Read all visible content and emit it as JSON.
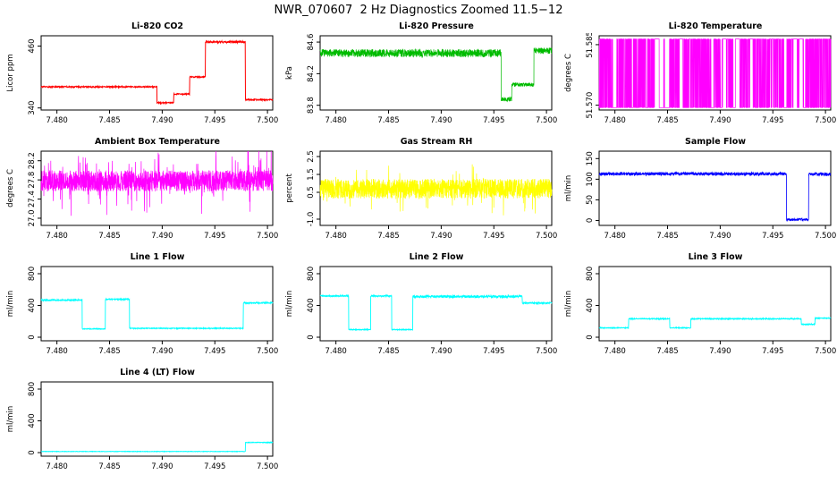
{
  "title": "NWR_070607  2 Hz Diagnostics Zoomed 11.5−12",
  "chart_data": [
    {
      "id": "li820-co2",
      "type": "line",
      "title": "Li-820 CO2",
      "ylabel": "Licor ppm",
      "color": "#FF0000",
      "lw": 1.0,
      "samples": 900,
      "xlim": [
        7.4785,
        7.5005
      ],
      "xticks": [
        7.48,
        7.485,
        7.49,
        7.495,
        7.5
      ],
      "xtick_labels": [
        "7.480",
        "7.485",
        "7.490",
        "7.495",
        "7.500"
      ],
      "ylim": [
        336,
        480
      ],
      "ytick_values": [
        340,
        460
      ],
      "ytick_labels": [
        "340",
        "460"
      ],
      "segments": [
        {
          "x0": 7.4785,
          "x1": 7.4895,
          "y": 381,
          "noise": 1.2
        },
        {
          "x0": 7.4895,
          "x1": 7.4911,
          "y": 350,
          "noise": 1.2
        },
        {
          "x0": 7.4911,
          "x1": 7.4926,
          "y": 367,
          "noise": 1.2
        },
        {
          "x0": 7.4926,
          "x1": 7.4941,
          "y": 400,
          "noise": 1.2
        },
        {
          "x0": 7.4941,
          "x1": 7.4979,
          "y": 468,
          "noise": 1.8
        },
        {
          "x0": 7.4979,
          "x1": 7.5005,
          "y": 356,
          "noise": 1.2
        }
      ]
    },
    {
      "id": "li820-pressure",
      "type": "line",
      "title": "Li-820 Pressure",
      "ylabel": "kPa",
      "color": "#00BB00",
      "lw": 0.7,
      "samples": 1500,
      "xlim": [
        7.4785,
        7.5005
      ],
      "xticks": [
        7.48,
        7.485,
        7.49,
        7.495,
        7.5
      ],
      "xtick_labels": [
        "7.480",
        "7.485",
        "7.490",
        "7.495",
        "7.500"
      ],
      "ylim": [
        83.74,
        84.68
      ],
      "ytick_values": [
        83.8,
        84.2,
        84.6
      ],
      "ytick_labels": [
        "83.8",
        "84.2",
        "84.6"
      ],
      "segments": [
        {
          "x0": 7.4785,
          "x1": 7.4957,
          "y": 84.46,
          "noise": 0.05
        },
        {
          "x0": 7.4957,
          "x1": 7.4967,
          "y": 83.88,
          "noise": 0.03
        },
        {
          "x0": 7.4967,
          "x1": 7.4988,
          "y": 84.06,
          "noise": 0.025
        },
        {
          "x0": 7.4988,
          "x1": 7.5005,
          "y": 84.49,
          "noise": 0.04
        }
      ]
    },
    {
      "id": "li820-temperature",
      "type": "line",
      "title": "Li-820 Temperature",
      "ylabel": "degrees C",
      "color": "#FF00FF",
      "lw": 0.7,
      "samples": 1600,
      "noise_type": "binary",
      "xlim": [
        7.4785,
        7.5005
      ],
      "xticks": [
        7.48,
        7.485,
        7.49,
        7.495,
        7.5
      ],
      "xtick_labels": [
        "7.480",
        "7.485",
        "7.490",
        "7.495",
        "7.500"
      ],
      "ylim": [
        51.5688,
        51.5872
      ],
      "ytick_values": [
        51.57,
        51.585
      ],
      "ytick_labels": [
        "51.570",
        "51.585"
      ],
      "segments": [
        {
          "x0": 7.4785,
          "x1": 7.5005,
          "lo": 51.5694,
          "hi": 51.5864
        }
      ]
    },
    {
      "id": "ambient-box-temperature",
      "type": "line",
      "title": "Ambient Box Temperature",
      "ylabel": "degrees C",
      "color": "#FF00FF",
      "lw": 0.7,
      "samples": 1700,
      "xlim": [
        7.4785,
        7.5005
      ],
      "xticks": [
        7.48,
        7.485,
        7.49,
        7.495,
        7.5
      ],
      "xtick_labels": [
        "7.480",
        "7.485",
        "7.490",
        "7.495",
        "7.500"
      ],
      "ylim": [
        26.85,
        28.4
      ],
      "ytick_values": [
        27.0,
        27.4,
        27.8,
        28.2
      ],
      "ytick_labels": [
        "27.0",
        "27.4",
        "27.8",
        "28.2"
      ],
      "segments": [
        {
          "x0": 7.4785,
          "x1": 7.5005,
          "y": 27.78,
          "noise": 0.22,
          "spike": {
            "amp": 0.5,
            "prob": 0.05
          }
        }
      ]
    },
    {
      "id": "gas-stream-rh",
      "type": "line",
      "title": "Gas Stream RH",
      "ylabel": "percent",
      "color": "#FFFF00",
      "lw": 0.7,
      "samples": 1700,
      "xlim": [
        7.4785,
        7.5005
      ],
      "xticks": [
        7.48,
        7.485,
        7.49,
        7.495,
        7.5
      ],
      "xtick_labels": [
        "7.480",
        "7.485",
        "7.490",
        "7.495",
        "7.500"
      ],
      "ylim": [
        -1.35,
        2.8
      ],
      "ytick_values": [
        -1.0,
        0.5,
        1.5,
        2.5
      ],
      "ytick_labels": [
        "-1.0",
        "0.5",
        "1.5",
        "2.5"
      ],
      "segments": [
        {
          "x0": 7.4785,
          "x1": 7.5005,
          "y": 0.7,
          "noise": 0.55,
          "spike": {
            "amp": 1.0,
            "prob": 0.04
          }
        }
      ]
    },
    {
      "id": "sample-flow",
      "type": "line",
      "title": "Sample Flow",
      "ylabel": "ml/min",
      "color": "#0000FF",
      "lw": 0.8,
      "samples": 1400,
      "xlim": [
        7.4785,
        7.5005
      ],
      "xticks": [
        7.48,
        7.485,
        7.49,
        7.495,
        7.5
      ],
      "xtick_labels": [
        "7.480",
        "7.485",
        "7.490",
        "7.495",
        "7.500"
      ],
      "ylim": [
        -12,
        168
      ],
      "ytick_values": [
        0,
        50,
        100,
        150
      ],
      "ytick_labels": [
        "0",
        "50",
        "100",
        "150"
      ],
      "segments": [
        {
          "x0": 7.4785,
          "x1": 7.4963,
          "y": 113,
          "noise": 4
        },
        {
          "x0": 7.4963,
          "x1": 7.4984,
          "y": 2,
          "noise": 3
        },
        {
          "x0": 7.4984,
          "x1": 7.5005,
          "y": 112,
          "noise": 4
        }
      ]
    },
    {
      "id": "line1-flow",
      "type": "line",
      "title": "Line 1 Flow",
      "ylabel": "ml/min",
      "color": "#00FFFF",
      "lw": 0.9,
      "samples": 1200,
      "xlim": [
        7.4785,
        7.5005
      ],
      "xticks": [
        7.48,
        7.485,
        7.49,
        7.495,
        7.5
      ],
      "xtick_labels": [
        "7.480",
        "7.485",
        "7.490",
        "7.495",
        "7.500"
      ],
      "ylim": [
        -45,
        890
      ],
      "ytick_values": [
        0,
        400,
        800
      ],
      "ytick_labels": [
        "0",
        "400",
        "800"
      ],
      "segments": [
        {
          "x0": 7.4785,
          "x1": 7.4824,
          "y": 468,
          "noise": 8
        },
        {
          "x0": 7.4824,
          "x1": 7.4846,
          "y": 105,
          "noise": 5
        },
        {
          "x0": 7.4846,
          "x1": 7.4869,
          "y": 478,
          "noise": 8
        },
        {
          "x0": 7.4869,
          "x1": 7.4977,
          "y": 112,
          "noise": 5
        },
        {
          "x0": 7.4977,
          "x1": 7.5005,
          "y": 432,
          "noise": 9
        }
      ]
    },
    {
      "id": "line2-flow",
      "type": "line",
      "title": "Line 2 Flow",
      "ylabel": "ml/min",
      "color": "#00FFFF",
      "lw": 0.9,
      "samples": 1200,
      "xlim": [
        7.4785,
        7.5005
      ],
      "xticks": [
        7.48,
        7.485,
        7.49,
        7.495,
        7.5
      ],
      "xtick_labels": [
        "7.480",
        "7.485",
        "7.490",
        "7.495",
        "7.500"
      ],
      "ylim": [
        -45,
        890
      ],
      "ytick_values": [
        0,
        400,
        800
      ],
      "ytick_labels": [
        "0",
        "400",
        "800"
      ],
      "segments": [
        {
          "x0": 7.4785,
          "x1": 7.4812,
          "y": 520,
          "noise": 9
        },
        {
          "x0": 7.4812,
          "x1": 7.4833,
          "y": 96,
          "noise": 5
        },
        {
          "x0": 7.4833,
          "x1": 7.4853,
          "y": 520,
          "noise": 9
        },
        {
          "x0": 7.4853,
          "x1": 7.4873,
          "y": 96,
          "noise": 5
        },
        {
          "x0": 7.4873,
          "x1": 7.4977,
          "y": 512,
          "noise": 16
        },
        {
          "x0": 7.4977,
          "x1": 7.5005,
          "y": 430,
          "noise": 10
        }
      ]
    },
    {
      "id": "line3-flow",
      "type": "line",
      "title": "Line 3 Flow",
      "ylabel": "ml/min",
      "color": "#00FFFF",
      "lw": 0.9,
      "samples": 1200,
      "xlim": [
        7.4785,
        7.5005
      ],
      "xticks": [
        7.48,
        7.485,
        7.49,
        7.495,
        7.5
      ],
      "xtick_labels": [
        "7.480",
        "7.485",
        "7.490",
        "7.495",
        "7.500"
      ],
      "ylim": [
        -45,
        890
      ],
      "ytick_values": [
        0,
        400,
        800
      ],
      "ytick_labels": [
        "0",
        "400",
        "800"
      ],
      "segments": [
        {
          "x0": 7.4785,
          "x1": 7.4813,
          "y": 118,
          "noise": 5
        },
        {
          "x0": 7.4813,
          "x1": 7.4852,
          "y": 232,
          "noise": 6
        },
        {
          "x0": 7.4852,
          "x1": 7.4872,
          "y": 118,
          "noise": 5
        },
        {
          "x0": 7.4872,
          "x1": 7.4977,
          "y": 232,
          "noise": 6
        },
        {
          "x0": 7.4977,
          "x1": 7.499,
          "y": 162,
          "noise": 6
        },
        {
          "x0": 7.499,
          "x1": 7.5005,
          "y": 240,
          "noise": 6
        }
      ]
    },
    {
      "id": "line4-lt-flow",
      "type": "line",
      "title": "Line 4 (LT) Flow",
      "ylabel": "ml/min",
      "color": "#00FFFF",
      "lw": 0.9,
      "samples": 1200,
      "xlim": [
        7.4785,
        7.5005
      ],
      "xticks": [
        7.48,
        7.485,
        7.49,
        7.495,
        7.5
      ],
      "xtick_labels": [
        "7.480",
        "7.485",
        "7.490",
        "7.495",
        "7.500"
      ],
      "ylim": [
        -45,
        890
      ],
      "ytick_values": [
        0,
        400,
        800
      ],
      "ytick_labels": [
        "0",
        "400",
        "800"
      ],
      "segments": [
        {
          "x0": 7.4785,
          "x1": 7.4979,
          "y": 14,
          "noise": 2.5
        },
        {
          "x0": 7.4979,
          "x1": 7.5005,
          "y": 128,
          "noise": 4
        }
      ]
    }
  ]
}
